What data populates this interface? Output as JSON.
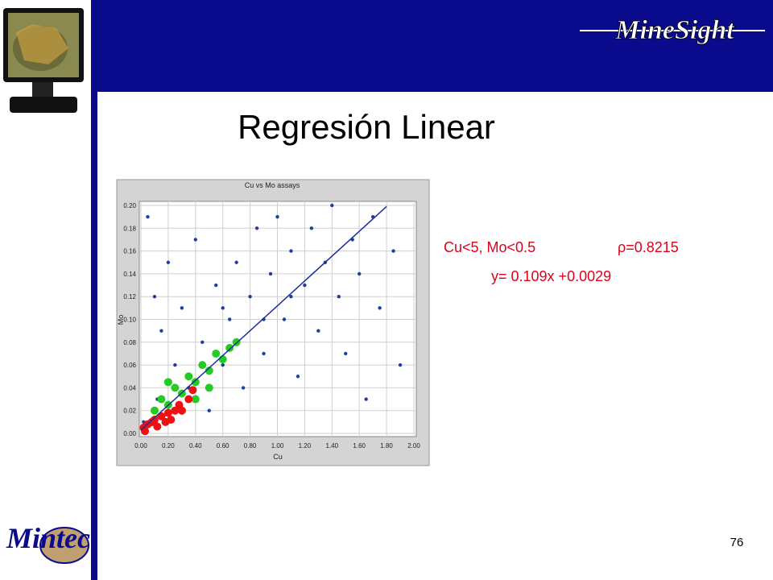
{
  "header": {
    "logo": "MineSight",
    "title": "Regresión Linear"
  },
  "footer": {
    "logo": "Mintec",
    "page_number": "76"
  },
  "annotations": {
    "subset": "Cu<5, Mo<0.5",
    "correlation": "ρ=0.8215",
    "equation": "y= 0.109x +0.0029"
  },
  "chart_data": {
    "type": "scatter",
    "title": "Cu vs Mo assays",
    "xlabel": "Cu",
    "ylabel": "Mo",
    "xlim": [
      0,
      2
    ],
    "ylim": [
      0,
      0.2
    ],
    "grid": true,
    "xticks": [
      {
        "value": 0,
        "label": "0.00"
      },
      {
        "value": 0.2,
        "label": "0.20"
      },
      {
        "value": 0.4,
        "label": "0.40"
      },
      {
        "value": 0.6,
        "label": "0.60"
      },
      {
        "value": 0.8,
        "label": "0.80"
      },
      {
        "value": 1,
        "label": "1.00"
      },
      {
        "value": 1.2,
        "label": "1.20"
      },
      {
        "value": 1.4,
        "label": "1.40"
      },
      {
        "value": 1.6,
        "label": "1.60"
      },
      {
        "value": 1.8,
        "label": "1.80"
      },
      {
        "value": 2,
        "label": "2.00"
      }
    ],
    "yticks": [
      {
        "value": 0,
        "label": "0.00"
      },
      {
        "value": 0.02,
        "label": "0.02"
      },
      {
        "value": 0.04,
        "label": "0.04"
      },
      {
        "value": 0.06,
        "label": "0.06"
      },
      {
        "value": 0.08,
        "label": "0.08"
      },
      {
        "value": 0.1,
        "label": "0.10"
      },
      {
        "value": 0.12,
        "label": "0.12"
      },
      {
        "value": 0.14,
        "label": "0.14"
      },
      {
        "value": 0.16,
        "label": "0.16"
      },
      {
        "value": 0.18,
        "label": "0.18"
      },
      {
        "value": 0.2,
        "label": "0.20"
      }
    ],
    "series": [
      {
        "color": "#1f3f9f",
        "size": 2.2,
        "x": [
          0.05,
          0.1,
          0.15,
          0.2,
          0.25,
          0.3,
          0.35,
          0.4,
          0.45,
          0.5,
          0.55,
          0.6,
          0.65,
          0.7,
          0.75,
          0.8,
          0.85,
          0.9,
          0.95,
          1.0,
          1.05,
          1.1,
          1.15,
          1.2,
          1.25,
          1.3,
          1.35,
          1.4,
          1.45,
          1.5,
          1.55,
          1.6,
          1.65,
          1.7,
          1.75,
          1.85,
          1.9,
          0.02,
          0.12,
          0.6,
          0.9,
          1.1
        ],
        "values": [
          0.19,
          0.12,
          0.09,
          0.15,
          0.06,
          0.11,
          0.04,
          0.17,
          0.08,
          0.02,
          0.13,
          0.06,
          0.1,
          0.15,
          0.04,
          0.12,
          0.18,
          0.07,
          0.14,
          0.19,
          0.1,
          0.16,
          0.05,
          0.13,
          0.18,
          0.09,
          0.15,
          0.2,
          0.12,
          0.07,
          0.17,
          0.14,
          0.03,
          0.19,
          0.11,
          0.16,
          0.06,
          0.01,
          0.03,
          0.11,
          0.1,
          0.12
        ]
      },
      {
        "color": "#22cc22",
        "size": 5,
        "x": [
          0.1,
          0.15,
          0.2,
          0.25,
          0.3,
          0.35,
          0.4,
          0.45,
          0.5,
          0.55,
          0.6,
          0.65,
          0.7,
          0.3,
          0.4,
          0.5,
          0.08,
          0.2
        ],
        "values": [
          0.02,
          0.03,
          0.025,
          0.04,
          0.035,
          0.05,
          0.045,
          0.06,
          0.055,
          0.07,
          0.065,
          0.075,
          0.08,
          0.02,
          0.03,
          0.04,
          0.01,
          0.045
        ]
      },
      {
        "color": "#ee1111",
        "size": 5,
        "x": [
          0.02,
          0.05,
          0.08,
          0.1,
          0.12,
          0.15,
          0.18,
          0.2,
          0.22,
          0.25,
          0.28,
          0.3,
          0.35,
          0.38,
          0.03
        ],
        "values": [
          0.005,
          0.008,
          0.01,
          0.012,
          0.006,
          0.015,
          0.01,
          0.018,
          0.012,
          0.02,
          0.025,
          0.02,
          0.03,
          0.038,
          0.002
        ]
      },
      {
        "type": "line",
        "color": "#1a2f9a",
        "x": [
          0,
          1.8
        ],
        "values": [
          0.0029,
          0.1991
        ]
      }
    ]
  }
}
